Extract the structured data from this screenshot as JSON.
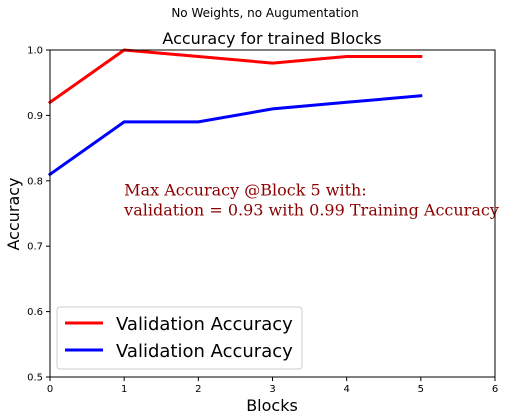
{
  "chart_data": {
    "type": "line",
    "suptitle": "No Weights, no Augumentation",
    "title": "Accuracy for trained Blocks",
    "xlabel": "Blocks",
    "ylabel": "Accuracy",
    "xlim": [
      0,
      6
    ],
    "ylim": [
      0.5,
      1.0
    ],
    "xticks": [
      "0",
      "1",
      "2",
      "3",
      "4",
      "5",
      "6"
    ],
    "yticks": [
      "0.5",
      "0.6",
      "0.7",
      "0.8",
      "0.9",
      "1.0"
    ],
    "grid": false,
    "legend_position": "lower-left",
    "x": [
      0,
      1,
      2,
      3,
      4,
      5
    ],
    "series": [
      {
        "name": "Validation Accuracy",
        "color": "#ff0000",
        "values": [
          0.92,
          1.0,
          0.99,
          0.98,
          0.99,
          0.99
        ]
      },
      {
        "name": "Validation Accuracy",
        "color": "#0000ff",
        "values": [
          0.81,
          0.89,
          0.89,
          0.91,
          0.92,
          0.93
        ]
      }
    ],
    "annotation": {
      "lines": [
        "Max Accuracy @Block 5 with:",
        "validation = 0.93 with 0.99 Training Accuracy"
      ],
      "color": "#8b0000",
      "x": 1,
      "y": 0.75
    }
  }
}
